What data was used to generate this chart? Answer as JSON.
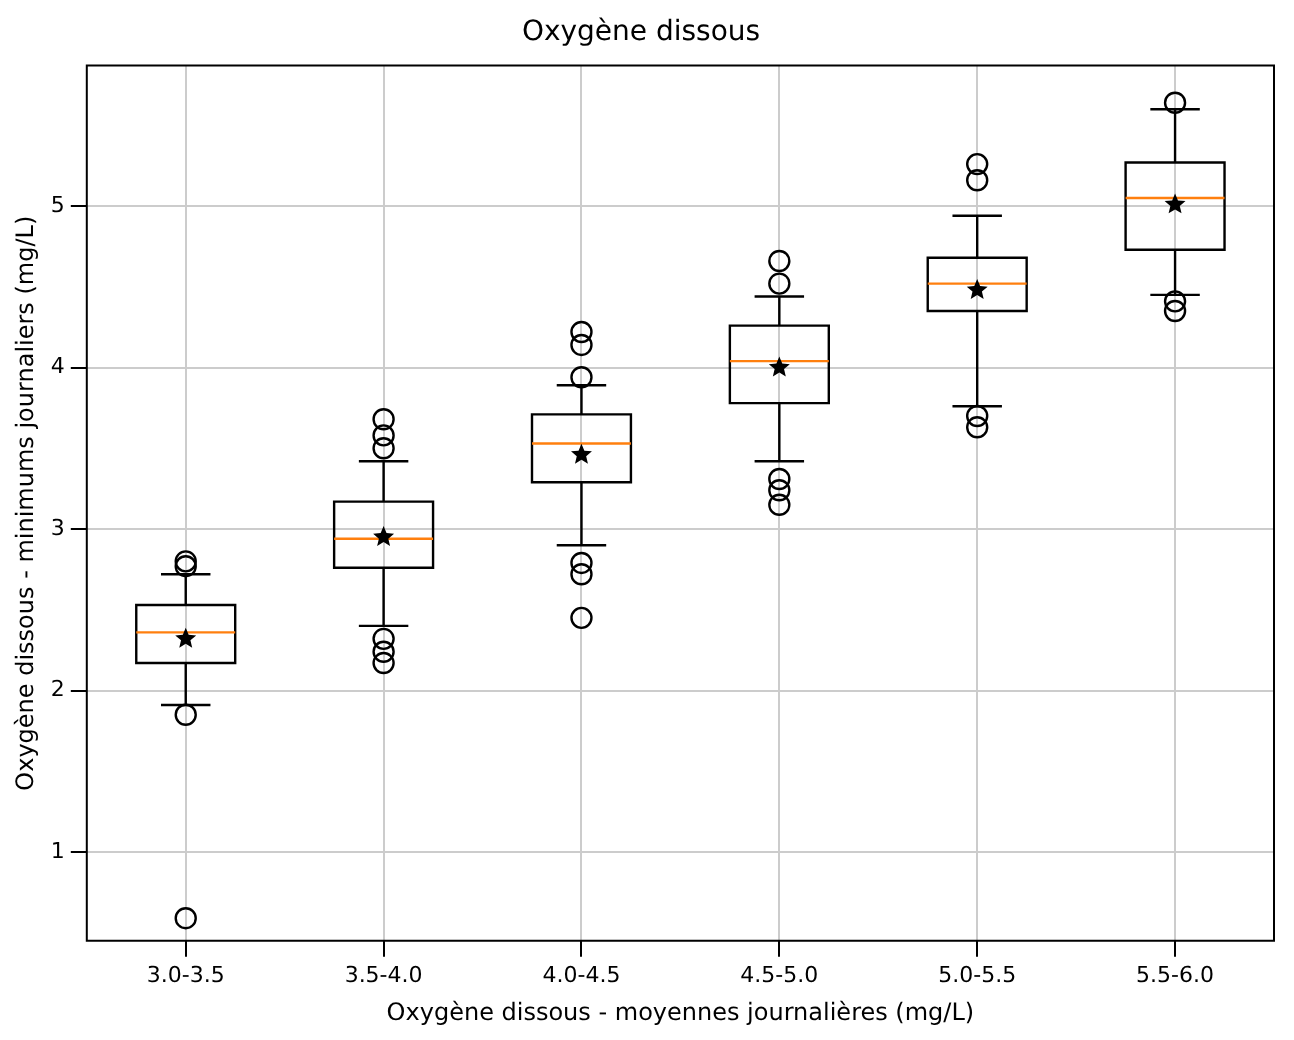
{
  "chart_data": {
    "type": "box",
    "title": "Oxygène dissous",
    "xlabel": "Oxygène dissous - moyennes journalières (mg/L)",
    "ylabel": "Oxygène dissous - minimums journaliers (mg/L)",
    "categories": [
      "3.0-3.5",
      "3.5-4.0",
      "4.0-4.5",
      "4.5-5.0",
      "5.0-5.5",
      "5.5-6.0"
    ],
    "boxes": [
      {
        "low": 1.91,
        "q1": 2.17,
        "median": 2.36,
        "q3": 2.53,
        "high": 2.72,
        "mean": 2.32,
        "outliers": [
          2.77,
          2.8,
          1.85,
          0.59
        ]
      },
      {
        "low": 2.4,
        "q1": 2.76,
        "median": 2.94,
        "q3": 3.17,
        "high": 3.42,
        "mean": 2.95,
        "outliers": [
          3.5,
          3.58,
          3.68,
          2.32,
          2.24,
          2.17
        ]
      },
      {
        "low": 2.9,
        "q1": 3.29,
        "median": 3.53,
        "q3": 3.71,
        "high": 3.89,
        "mean": 3.46,
        "outliers": [
          3.94,
          4.14,
          4.22,
          2.79,
          2.72,
          2.45
        ]
      },
      {
        "low": 3.42,
        "q1": 3.78,
        "median": 4.04,
        "q3": 4.26,
        "high": 4.44,
        "mean": 4.0,
        "outliers": [
          4.52,
          4.66,
          3.31,
          3.24,
          3.15
        ]
      },
      {
        "low": 3.76,
        "q1": 4.35,
        "median": 4.52,
        "q3": 4.68,
        "high": 4.94,
        "mean": 4.48,
        "outliers": [
          5.16,
          5.26,
          3.7,
          3.63
        ]
      },
      {
        "low": 4.45,
        "q1": 4.73,
        "median": 5.05,
        "q3": 5.27,
        "high": 5.6,
        "mean": 5.01,
        "outliers": [
          5.64,
          4.41,
          4.35
        ]
      }
    ],
    "color": "#000000",
    "ylim": [
      0.45,
      5.87
    ],
    "yticks": [
      1,
      2,
      3,
      4,
      5
    ],
    "grid": true
  }
}
